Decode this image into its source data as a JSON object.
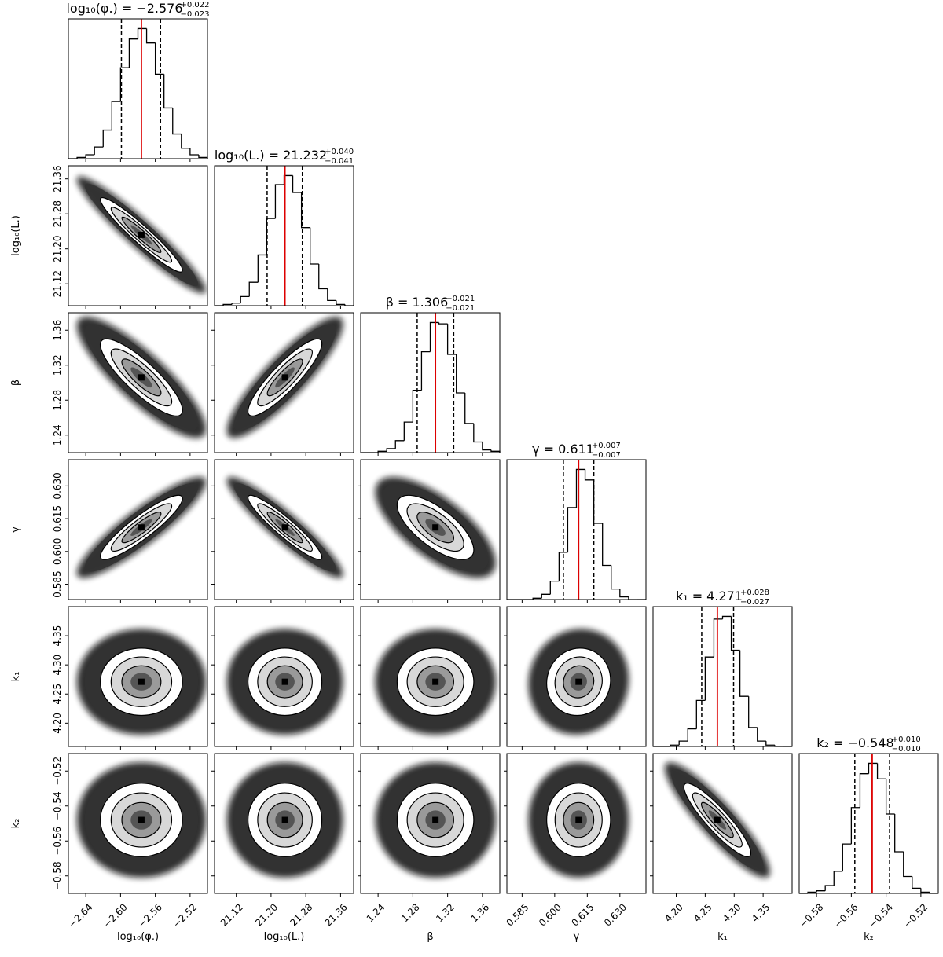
{
  "chart_data": {
    "type": "corner",
    "parameters": [
      {
        "label": "log₁₀(φ.)",
        "title_name": "log₁₀(φ.) =",
        "median": {
          "value": -2.576,
          "label": "−2.576"
        },
        "plus": {
          "value": 0.022,
          "label": "+0.022"
        },
        "minus": {
          "value": -0.023,
          "label": "−0.023"
        },
        "xlim": [
          -2.66,
          -2.5
        ],
        "ticks": [
          {
            "value": -2.64,
            "label": "−2.64"
          },
          {
            "value": -2.6,
            "label": "−2.60"
          },
          {
            "value": -2.56,
            "label": "−2.56"
          },
          {
            "value": -2.52,
            "label": "−2.52"
          }
        ],
        "bins": [
          -2.66,
          -2.65,
          -2.64,
          -2.63,
          -2.62,
          -2.61,
          -2.6,
          -2.59,
          -2.58,
          -2.57,
          -2.56,
          -2.55,
          -2.54,
          -2.53,
          -2.52,
          -2.51,
          -2.5
        ],
        "counts": [
          0,
          1,
          3,
          9,
          22,
          44,
          70,
          92,
          100,
          89,
          65,
          39,
          19,
          8,
          3,
          1
        ]
      },
      {
        "label": "log₁₀(L.)",
        "title_name": "log₁₀(L.) =",
        "median": 21.232,
        "plus": {
          "value": 0.04,
          "label": "+0.040"
        },
        "minus": {
          "value": -0.041,
          "label": "−0.041"
        },
        "xlim": [
          21.07,
          21.39
        ],
        "ticks": [
          21.12,
          {
            "value": 21.2,
            "label": "21.20"
          },
          21.28,
          21.36
        ],
        "bins": [
          21.07,
          21.09,
          21.11,
          21.13,
          21.15,
          21.17,
          21.19,
          21.21,
          21.23,
          21.25,
          21.27,
          21.29,
          21.31,
          21.33,
          21.35,
          21.37,
          21.39
        ],
        "counts": [
          0,
          1,
          2,
          7,
          18,
          39,
          67,
          93,
          100,
          87,
          60,
          32,
          13,
          4,
          1,
          0
        ]
      },
      {
        "label": "β",
        "title_name": "β =",
        "median": 1.306,
        "plus": {
          "value": 0.021,
          "label": "+0.021"
        },
        "minus": {
          "value": -0.021,
          "label": "−0.021"
        },
        "xlim": [
          1.22,
          1.38
        ],
        "ticks": [
          1.24,
          1.28,
          1.32,
          1.36
        ],
        "bins": [
          1.22,
          1.23,
          1.24,
          1.25,
          1.26,
          1.27,
          1.28,
          1.29,
          1.3,
          1.31,
          1.32,
          1.33,
          1.34,
          1.35,
          1.36,
          1.37,
          1.38
        ],
        "counts": [
          0,
          0,
          1,
          3,
          9,
          23,
          47,
          76,
          98,
          97,
          74,
          45,
          22,
          8,
          2,
          1
        ]
      },
      {
        "label": "γ",
        "title_name": "γ =",
        "median": 0.611,
        "plus": {
          "value": 0.007,
          "label": "+0.007"
        },
        "minus": {
          "value": -0.007,
          "label": "−0.007"
        },
        "xlim": [
          0.578,
          0.642
        ],
        "ticks": [
          0.585,
          {
            "value": 0.6,
            "label": "0.600"
          },
          0.615,
          {
            "value": 0.63,
            "label": "0.630"
          }
        ],
        "bins": [
          0.578,
          0.582,
          0.586,
          0.59,
          0.594,
          0.598,
          0.602,
          0.606,
          0.61,
          0.614,
          0.618,
          0.622,
          0.626,
          0.63,
          0.634,
          0.638,
          0.642
        ],
        "counts": [
          0,
          0,
          0,
          1,
          4,
          14,
          36,
          70,
          99,
          91,
          58,
          26,
          8,
          2,
          0,
          0
        ]
      },
      {
        "label": "k₁",
        "title_name": "k₁ =",
        "median": 4.271,
        "plus": {
          "value": 0.028,
          "label": "+0.028"
        },
        "minus": {
          "value": -0.027,
          "label": "−0.027"
        },
        "xlim": [
          4.16,
          4.4
        ],
        "ticks": [
          {
            "value": 4.2,
            "label": "4.20"
          },
          4.25,
          {
            "value": 4.3,
            "label": "4.30"
          },
          4.35
        ],
        "bins": [
          4.16,
          4.175,
          4.19,
          4.205,
          4.22,
          4.235,
          4.25,
          4.265,
          4.28,
          4.295,
          4.31,
          4.325,
          4.34,
          4.355,
          4.37,
          4.385,
          4.4
        ],
        "counts": [
          0,
          0,
          1,
          4,
          13,
          34,
          66,
          94,
          96,
          71,
          37,
          14,
          4,
          1,
          0,
          0
        ]
      },
      {
        "label": "k₂",
        "title_name": "k₂ =",
        "median": {
          "value": -0.548,
          "label": "−0.548"
        },
        "plus": {
          "value": 0.01,
          "label": "+0.010"
        },
        "minus": {
          "value": -0.01,
          "label": "−0.010"
        },
        "xlim": [
          -0.59,
          -0.51
        ],
        "ticks": [
          {
            "value": -0.58,
            "label": "−0.58"
          },
          {
            "value": -0.56,
            "label": "−0.56"
          },
          {
            "value": -0.54,
            "label": "−0.54"
          },
          {
            "value": -0.52,
            "label": "−0.52"
          }
        ],
        "bins": [
          -0.59,
          -0.585,
          -0.58,
          -0.575,
          -0.57,
          -0.565,
          -0.56,
          -0.555,
          -0.55,
          -0.545,
          -0.54,
          -0.535,
          -0.53,
          -0.525,
          -0.52,
          -0.515,
          -0.51
        ],
        "counts": [
          0,
          1,
          2,
          6,
          17,
          38,
          66,
          92,
          100,
          88,
          61,
          32,
          13,
          4,
          1,
          0
        ]
      }
    ],
    "correlations": [
      [
        -0.95
      ],
      [
        -0.85,
        0.88
      ],
      [
        0.9,
        -0.93,
        -0.7
      ],
      [
        0,
        0,
        0,
        0.05
      ],
      [
        0,
        0,
        0,
        0,
        -0.9
      ]
    ],
    "median_color": "#dd0000"
  }
}
